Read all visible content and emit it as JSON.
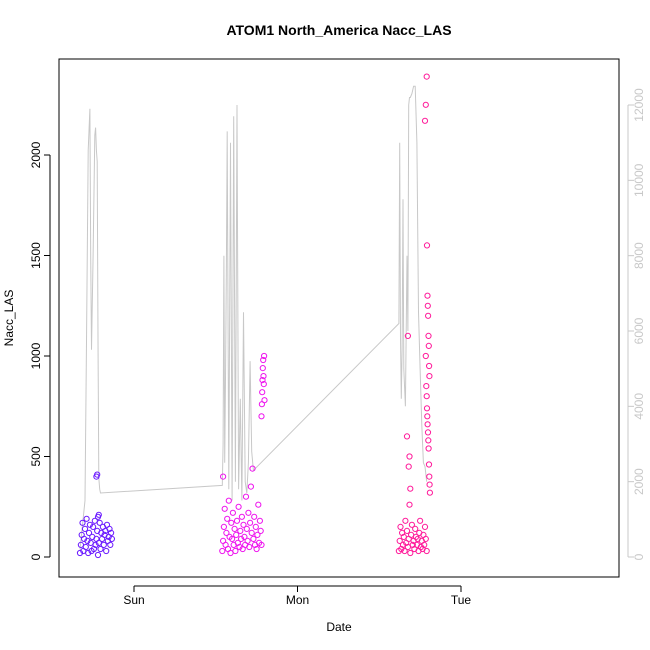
{
  "chart_data": {
    "type": "scatter",
    "title": "ATOM1 North_America Nacc_LAS",
    "xlabel": "Date",
    "ylabel": "Nacc_LAS",
    "x_ticks": [
      "Sun",
      "Mon",
      "Tue"
    ],
    "y_ticks": [
      "0",
      "500",
      "1000",
      "1500",
      "2000"
    ],
    "y_right_ticks": [
      "0",
      "2000",
      "4000",
      "6000",
      "8000",
      "10000",
      "12000"
    ],
    "ylim": [
      0,
      2400
    ],
    "y_right_lim": [
      0,
      12500
    ],
    "x_days_range": [
      "Sat",
      "Wed"
    ],
    "grid": false,
    "colors": {
      "day1": "#6a18ff",
      "day2": "#ee14ee",
      "day3": "#ff1a9a",
      "line": "#c8c8c8",
      "axis_left": "#000000",
      "axis_right": "#c8c8c8"
    },
    "series": [
      {
        "role": "points-Sat",
        "marker": "open-circle",
        "color_key": "day1",
        "points": [
          [
            -0.33,
            20
          ],
          [
            -0.325,
            60
          ],
          [
            -0.32,
            110
          ],
          [
            -0.315,
            170
          ],
          [
            -0.31,
            30
          ],
          [
            -0.305,
            90
          ],
          [
            -0.3,
            140
          ],
          [
            -0.295,
            50
          ],
          [
            -0.29,
            190
          ],
          [
            -0.285,
            80
          ],
          [
            -0.28,
            20
          ],
          [
            -0.275,
            120
          ],
          [
            -0.27,
            160
          ],
          [
            -0.265,
            70
          ],
          [
            -0.26,
            30
          ],
          [
            -0.255,
            100
          ],
          [
            -0.25,
            150
          ],
          [
            -0.245,
            40
          ],
          [
            -0.24,
            180
          ],
          [
            -0.235,
            60
          ],
          [
            -0.23,
            90
          ],
          [
            -0.225,
            130
          ],
          [
            -0.22,
            10
          ],
          [
            -0.215,
            70
          ],
          [
            -0.21,
            170
          ],
          [
            -0.205,
            40
          ],
          [
            -0.2,
            120
          ],
          [
            -0.195,
            90
          ],
          [
            -0.19,
            150
          ],
          [
            -0.185,
            60
          ],
          [
            -0.18,
            110
          ],
          [
            -0.175,
            130
          ],
          [
            -0.17,
            30
          ],
          [
            -0.165,
            160
          ],
          [
            -0.16,
            80
          ],
          [
            -0.155,
            100
          ],
          [
            -0.15,
            140
          ],
          [
            -0.145,
            60
          ],
          [
            -0.14,
            120
          ],
          [
            -0.135,
            90
          ],
          [
            -0.23,
            400
          ],
          [
            -0.225,
            410
          ],
          [
            -0.22,
            200
          ],
          [
            -0.215,
            210
          ]
        ]
      },
      {
        "role": "points-Mon",
        "marker": "open-circle",
        "color_key": "day2",
        "points": [
          [
            0.54,
            30
          ],
          [
            0.545,
            80
          ],
          [
            0.55,
            150
          ],
          [
            0.555,
            240
          ],
          [
            0.56,
            60
          ],
          [
            0.565,
            120
          ],
          [
            0.57,
            190
          ],
          [
            0.575,
            40
          ],
          [
            0.58,
            280
          ],
          [
            0.585,
            100
          ],
          [
            0.59,
            20
          ],
          [
            0.595,
            170
          ],
          [
            0.6,
            90
          ],
          [
            0.605,
            220
          ],
          [
            0.61,
            60
          ],
          [
            0.615,
            140
          ],
          [
            0.62,
            30
          ],
          [
            0.625,
            110
          ],
          [
            0.63,
            180
          ],
          [
            0.635,
            70
          ],
          [
            0.64,
            250
          ],
          [
            0.645,
            50
          ],
          [
            0.65,
            130
          ],
          [
            0.655,
            90
          ],
          [
            0.66,
            200
          ],
          [
            0.665,
            40
          ],
          [
            0.67,
            160
          ],
          [
            0.675,
            100
          ],
          [
            0.68,
            60
          ],
          [
            0.685,
            300
          ],
          [
            0.69,
            140
          ],
          [
            0.695,
            80
          ],
          [
            0.7,
            220
          ],
          [
            0.705,
            50
          ],
          [
            0.71,
            170
          ],
          [
            0.715,
            350
          ],
          [
            0.72,
            120
          ],
          [
            0.725,
            440
          ],
          [
            0.73,
            90
          ],
          [
            0.735,
            200
          ],
          [
            0.74,
            60
          ],
          [
            0.745,
            150
          ],
          [
            0.75,
            40
          ],
          [
            0.755,
            110
          ],
          [
            0.76,
            260
          ],
          [
            0.765,
            70
          ],
          [
            0.77,
            180
          ],
          [
            0.775,
            130
          ],
          [
            0.78,
            60
          ],
          [
            0.545,
            400
          ],
          [
            0.78,
            700
          ],
          [
            0.782,
            760
          ],
          [
            0.784,
            820
          ],
          [
            0.786,
            880
          ],
          [
            0.788,
            940
          ],
          [
            0.79,
            980
          ],
          [
            0.792,
            900
          ],
          [
            0.794,
            860
          ],
          [
            0.796,
            1000
          ],
          [
            0.798,
            780
          ]
        ]
      },
      {
        "role": "points-Tue",
        "marker": "open-circle",
        "color_key": "day3",
        "points": [
          [
            1.62,
            30
          ],
          [
            1.625,
            80
          ],
          [
            1.63,
            150
          ],
          [
            1.635,
            40
          ],
          [
            1.64,
            120
          ],
          [
            1.645,
            60
          ],
          [
            1.65,
            100
          ],
          [
            1.655,
            30
          ],
          [
            1.66,
            180
          ],
          [
            1.665,
            70
          ],
          [
            1.67,
            130
          ],
          [
            1.675,
            50
          ],
          [
            1.68,
            90
          ],
          [
            1.685,
            260
          ],
          [
            1.69,
            20
          ],
          [
            1.695,
            110
          ],
          [
            1.7,
            160
          ],
          [
            1.705,
            60
          ],
          [
            1.71,
            80
          ],
          [
            1.715,
            40
          ],
          [
            1.72,
            140
          ],
          [
            1.725,
            100
          ],
          [
            1.73,
            60
          ],
          [
            1.735,
            90
          ],
          [
            1.74,
            30
          ],
          [
            1.745,
            120
          ],
          [
            1.75,
            180
          ],
          [
            1.755,
            50
          ],
          [
            1.76,
            80
          ],
          [
            1.765,
            40
          ],
          [
            1.77,
            110
          ],
          [
            1.775,
            60
          ],
          [
            1.78,
            150
          ],
          [
            1.785,
            90
          ],
          [
            1.79,
            30
          ],
          [
            1.675,
            1100
          ],
          [
            1.67,
            600
          ],
          [
            1.68,
            450
          ],
          [
            1.69,
            340
          ],
          [
            1.685,
            500
          ],
          [
            1.79,
            2390
          ],
          [
            1.785,
            2250
          ],
          [
            1.78,
            2170
          ],
          [
            1.792,
            1550
          ],
          [
            1.795,
            1300
          ],
          [
            1.797,
            1250
          ],
          [
            1.799,
            1200
          ],
          [
            1.801,
            1100
          ],
          [
            1.803,
            1050
          ],
          [
            1.805,
            950
          ],
          [
            1.807,
            900
          ],
          [
            1.79,
            800
          ],
          [
            1.792,
            740
          ],
          [
            1.794,
            700
          ],
          [
            1.796,
            660
          ],
          [
            1.798,
            620
          ],
          [
            1.8,
            580
          ],
          [
            1.802,
            540
          ],
          [
            1.804,
            460
          ],
          [
            1.806,
            400
          ],
          [
            1.808,
            360
          ],
          [
            1.81,
            320
          ],
          [
            1.785,
            1000
          ],
          [
            1.788,
            850
          ]
        ]
      },
      {
        "role": "right-axis-line",
        "axis": "right",
        "color_key": "line",
        "points": [
          [
            -0.33,
            200
          ],
          [
            -0.3,
            1500
          ],
          [
            -0.29,
            6000
          ],
          [
            -0.28,
            10800
          ],
          [
            -0.27,
            11900
          ],
          [
            -0.265,
            8000
          ],
          [
            -0.26,
            5500
          ],
          [
            -0.25,
            8000
          ],
          [
            -0.24,
            11200
          ],
          [
            -0.235,
            11400
          ],
          [
            -0.23,
            10800
          ],
          [
            -0.225,
            10500
          ],
          [
            -0.22,
            5800
          ],
          [
            -0.215,
            2100
          ],
          [
            -0.21,
            1800
          ],
          [
            -0.205,
            1700
          ],
          [
            0.54,
            1900
          ],
          [
            0.545,
            3000
          ],
          [
            0.55,
            8000
          ],
          [
            0.555,
            2500
          ],
          [
            0.56,
            5000
          ],
          [
            0.565,
            7800
          ],
          [
            0.57,
            11300
          ],
          [
            0.575,
            6500
          ],
          [
            0.58,
            1800
          ],
          [
            0.59,
            11000
          ],
          [
            0.6,
            1500
          ],
          [
            0.61,
            11700
          ],
          [
            0.62,
            2000
          ],
          [
            0.63,
            12000
          ],
          [
            0.64,
            1800
          ],
          [
            0.65,
            4200
          ],
          [
            0.66,
            1500
          ],
          [
            0.67,
            6500
          ],
          [
            0.68,
            2000
          ],
          [
            0.69,
            1700
          ],
          [
            0.7,
            2500
          ],
          [
            0.71,
            5200
          ],
          [
            0.72,
            2800
          ],
          [
            0.73,
            2300
          ],
          [
            1.62,
            6200
          ],
          [
            1.625,
            11000
          ],
          [
            1.63,
            5800
          ],
          [
            1.635,
            4200
          ],
          [
            1.64,
            5500
          ],
          [
            1.645,
            9500
          ],
          [
            1.65,
            5000
          ],
          [
            1.655,
            4500
          ],
          [
            1.66,
            4000
          ],
          [
            1.67,
            8000
          ],
          [
            1.675,
            6000
          ],
          [
            1.68,
            12000
          ],
          [
            1.685,
            12200
          ],
          [
            1.69,
            12200
          ],
          [
            1.7,
            12300
          ],
          [
            1.71,
            12500
          ],
          [
            1.72,
            12500
          ],
          [
            1.73,
            11000
          ],
          [
            1.74,
            6500
          ],
          [
            1.75,
            5000
          ],
          [
            1.76,
            3500
          ],
          [
            1.77,
            2500
          ],
          [
            1.78,
            2400
          ],
          [
            1.79,
            2000
          ]
        ]
      }
    ]
  }
}
